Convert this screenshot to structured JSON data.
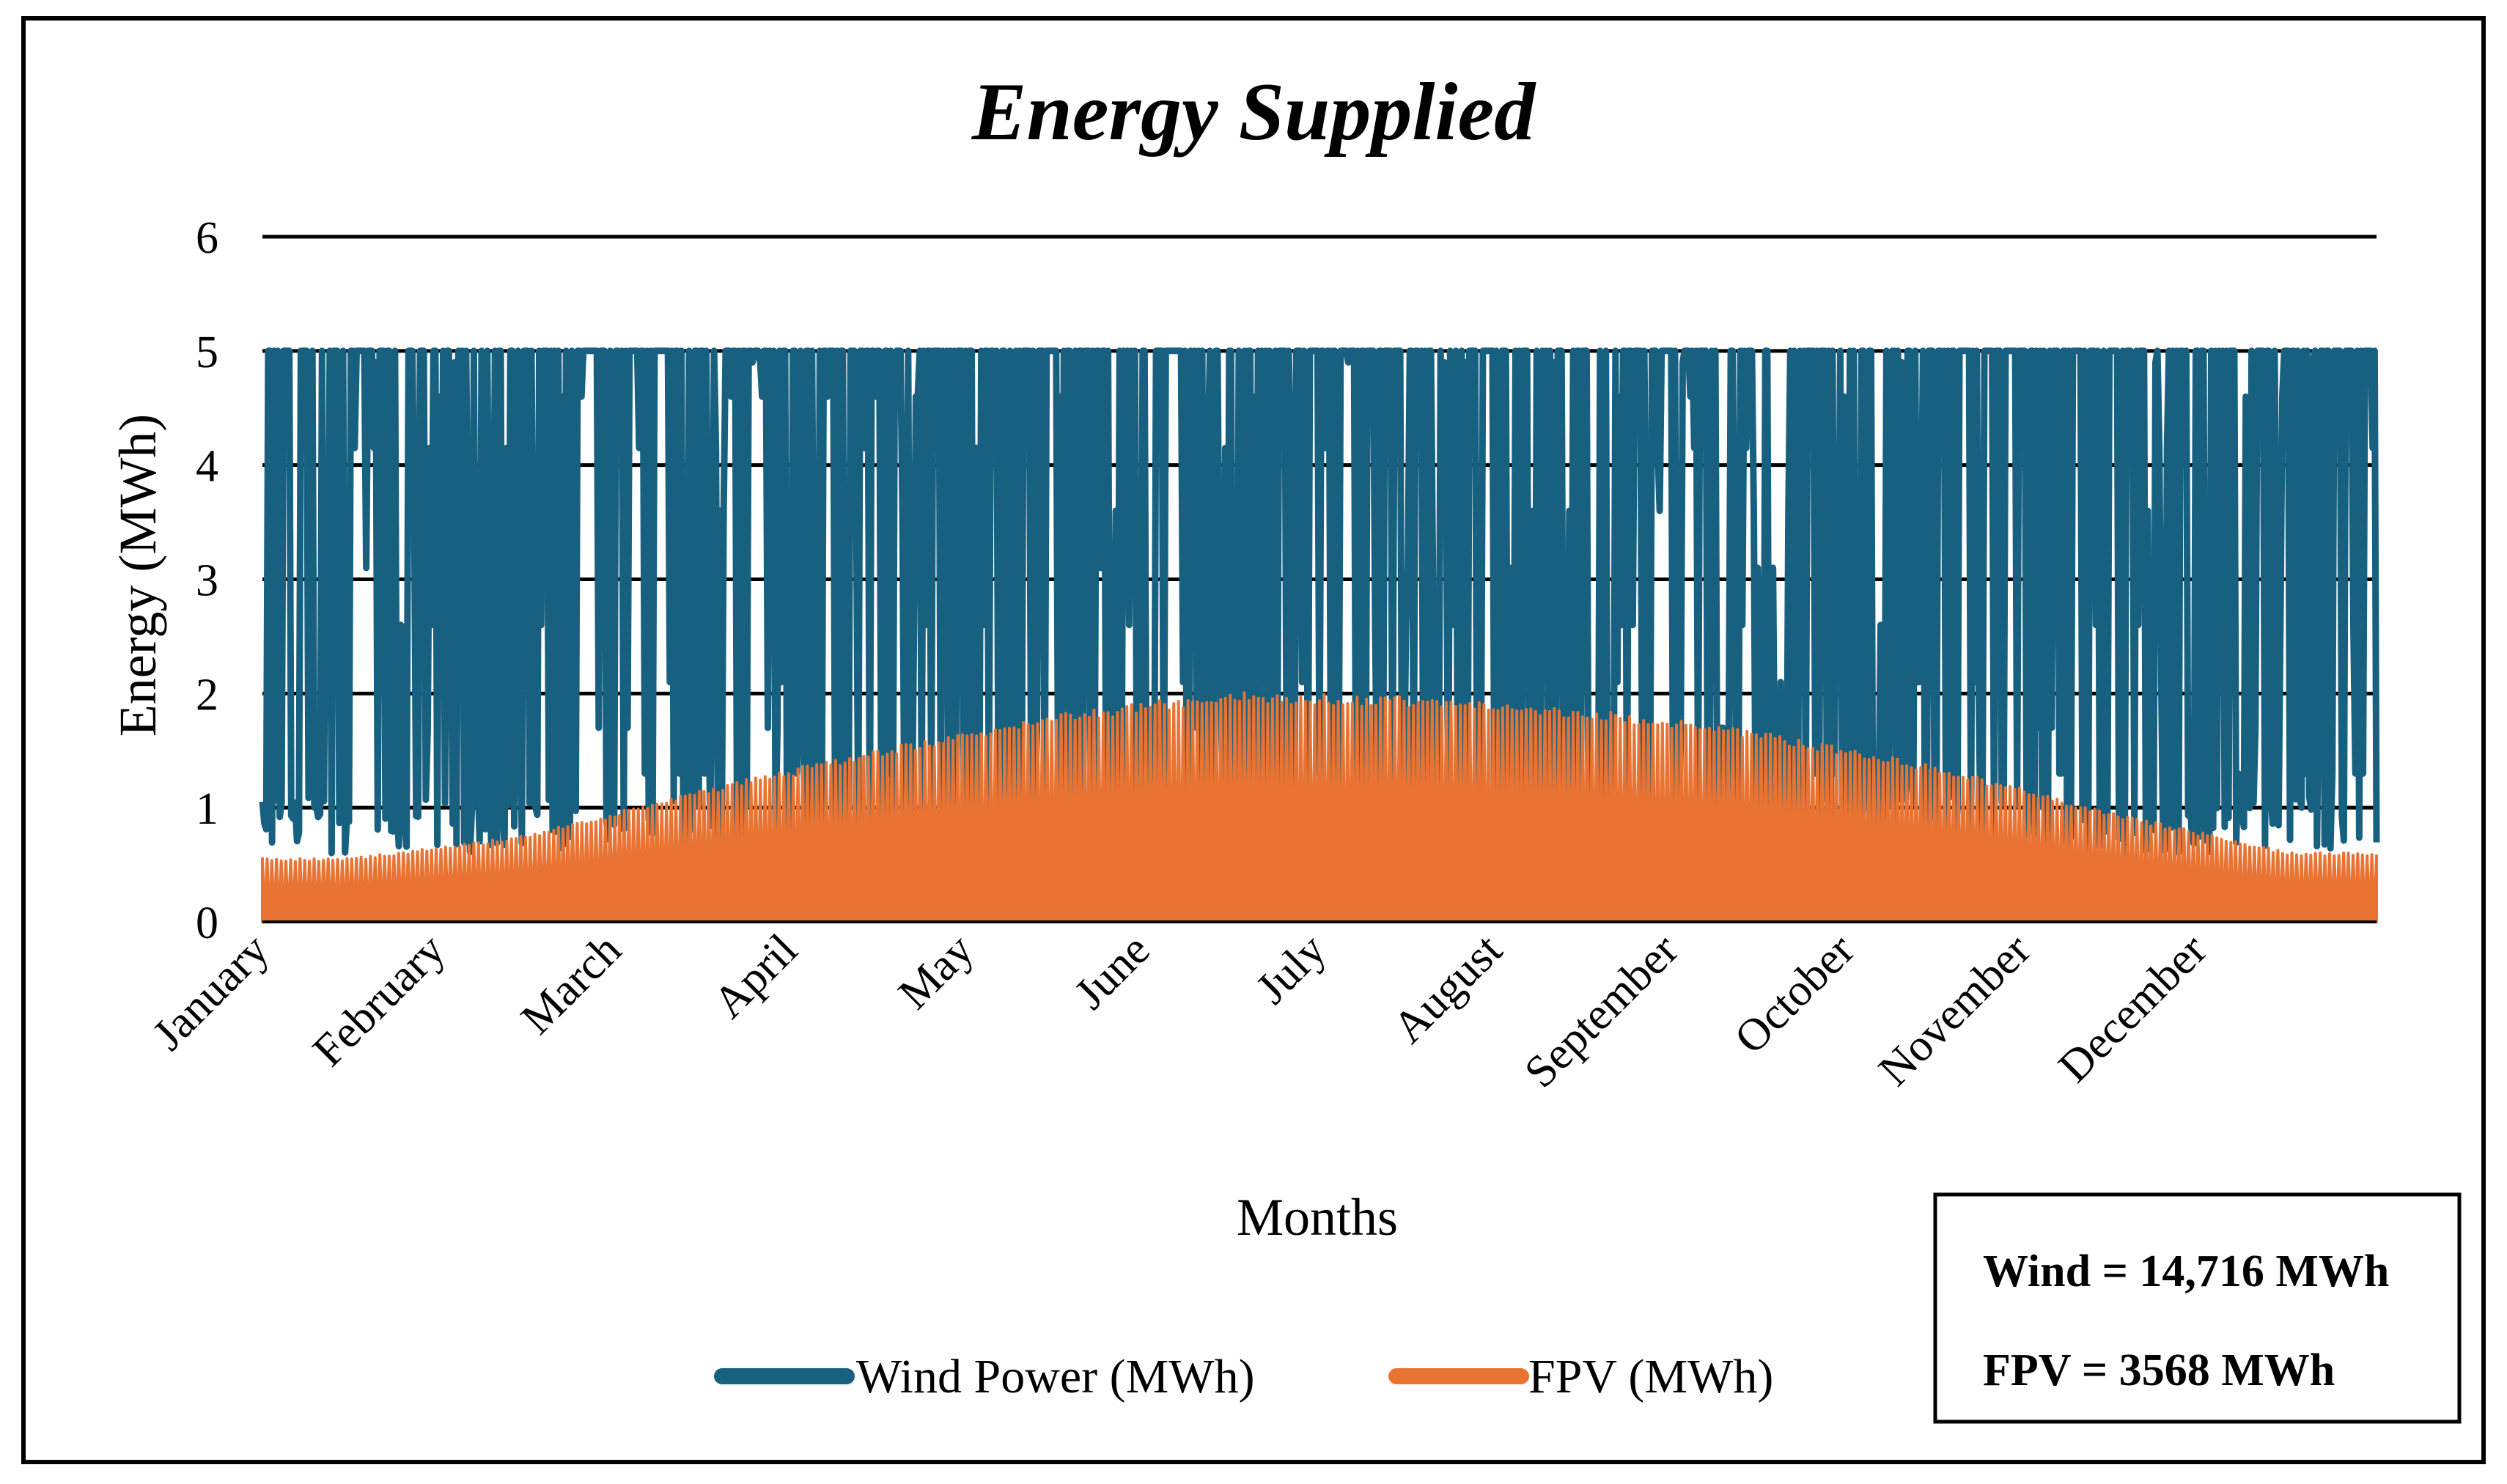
{
  "chart_data": {
    "type": "line",
    "title": "Energy Supplied",
    "xlabel": "Months",
    "ylabel": "Energy (MWh)",
    "ylim": [
      0,
      6
    ],
    "yticks": [
      0,
      1,
      2,
      3,
      4,
      5,
      6
    ],
    "grid": true,
    "categories": [
      "January",
      "February",
      "March",
      "April",
      "May",
      "June",
      "July",
      "August",
      "September",
      "October",
      "November",
      "December"
    ],
    "series": [
      {
        "name": "Wind Power (MWh)",
        "color": "#17607f",
        "style": "dense-hourly-profile",
        "monthly_min": [
          0.6,
          0.6,
          0.6,
          0.6,
          0.6,
          0.6,
          0.6,
          0.6,
          0.6,
          0.6,
          0.6,
          0.6
        ],
        "monthly_peak": [
          5.0,
          5.0,
          5.0,
          5.0,
          5.0,
          5.0,
          5.0,
          5.0,
          5.0,
          5.0,
          5.0,
          5.0
        ]
      },
      {
        "name": "FPV (MWh)",
        "color": "#e87332",
        "style": "dense-hourly-area",
        "monthly_peak": [
          0.55,
          0.75,
          1.15,
          1.5,
          1.8,
          2.0,
          1.95,
          1.85,
          1.65,
          1.35,
          0.95,
          0.6
        ]
      }
    ],
    "annotation": {
      "wind_total": "Wind = 14,716 MWh",
      "fpv_total": "FPV = 3568 MWh"
    },
    "legend": "bottom"
  }
}
